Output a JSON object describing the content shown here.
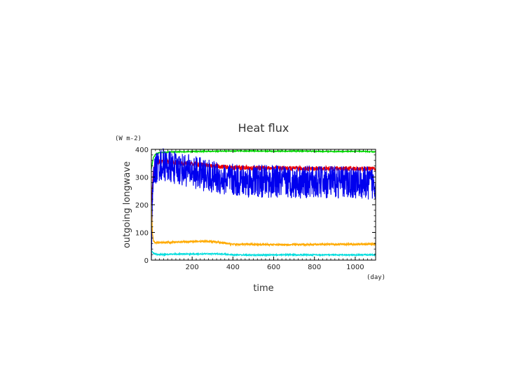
{
  "chart_data": {
    "type": "line",
    "title": "Heat flux",
    "xlabel": "time",
    "ylabel": "outgoing longwave",
    "x_unit": "(day)",
    "y_unit": "(W m-2)",
    "xlim": [
      0,
      1100
    ],
    "ylim": [
      0,
      400
    ],
    "x_ticks": [
      200,
      400,
      600,
      800,
      1000
    ],
    "y_ticks": [
      0,
      100,
      200,
      300,
      400
    ],
    "grid": false,
    "series": [
      {
        "color": "#00dd00",
        "x": [
          0,
          10,
          20,
          40,
          60,
          80,
          100,
          150,
          200,
          300,
          400,
          500,
          600,
          700,
          800,
          900,
          1000,
          1100
        ],
        "y": [
          330,
          370,
          382,
          388,
          389,
          390,
          391,
          391,
          392,
          393,
          394,
          394,
          393,
          394,
          393,
          392,
          393,
          391
        ]
      },
      {
        "color": "#ee0000",
        "x": [
          0,
          10,
          20,
          40,
          60,
          80,
          100,
          150,
          200,
          250,
          300,
          350,
          400,
          500,
          600,
          700,
          800,
          900,
          1000,
          1100
        ],
        "y": [
          200,
          330,
          350,
          355,
          356,
          355,
          353,
          350,
          348,
          345,
          340,
          337,
          334,
          333,
          332,
          331,
          330,
          331,
          330,
          330
        ]
      },
      {
        "color": "#0000ee",
        "x": [
          0,
          5,
          10,
          20,
          40,
          60,
          80,
          100,
          150,
          200,
          250,
          300,
          350,
          400,
          450,
          500,
          600,
          700,
          800,
          900,
          1000,
          1100
        ],
        "y": [
          0,
          200,
          290,
          330,
          345,
          345,
          340,
          335,
          328,
          320,
          310,
          300,
          292,
          288,
          287,
          286,
          284,
          283,
          281,
          282,
          280,
          278
        ]
      },
      {
        "color": "#ffaa00",
        "x": [
          0,
          5,
          10,
          20,
          40,
          80,
          150,
          200,
          250,
          300,
          350,
          400,
          500,
          600,
          700,
          800,
          900,
          1000,
          1100
        ],
        "y": [
          200,
          100,
          70,
          62,
          63,
          64,
          66,
          67,
          68,
          67,
          62,
          57,
          57,
          56,
          56,
          57,
          57,
          57,
          58
        ]
      },
      {
        "color": "#00dddd",
        "x": [
          0,
          10,
          20,
          40,
          80,
          150,
          200,
          250,
          300,
          350,
          400,
          500,
          600,
          700,
          800,
          900,
          1000,
          1100
        ],
        "y": [
          35,
          25,
          22,
          20,
          21,
          22,
          22,
          22,
          23,
          22,
          19,
          18,
          19,
          19,
          19,
          19,
          19,
          19
        ]
      }
    ],
    "noise": [
      0,
      1.5,
      8,
      60,
      3,
      2
    ]
  }
}
